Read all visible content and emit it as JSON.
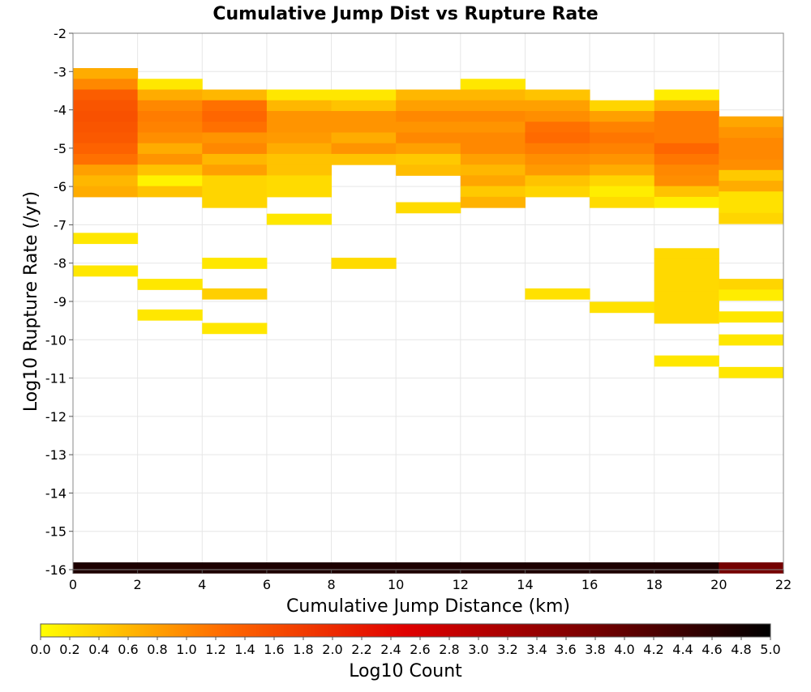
{
  "chart_data": {
    "type": "heatmap",
    "title": "Cumulative Jump Dist vs Rupture Rate",
    "xlabel": "Cumulative Jump Distance (km)",
    "ylabel": "Log10 Rupture Rate (/yr)",
    "xlim": [
      0,
      22
    ],
    "ylim": [
      -16,
      -2
    ],
    "x_ticks": [
      "0",
      "2",
      "4",
      "6",
      "8",
      "10",
      "12",
      "14",
      "16",
      "18",
      "20",
      "22"
    ],
    "y_ticks": [
      "-2",
      "-3",
      "-4",
      "-5",
      "-6",
      "-7",
      "-8",
      "-9",
      "-10",
      "-11",
      "-12",
      "-13",
      "-14",
      "-15",
      "-16"
    ],
    "grid": true,
    "x_bin_width": 2,
    "y_bin_height": 0.28,
    "colorbar": {
      "label": "Log10 Count",
      "range": [
        0,
        5
      ],
      "ticks": [
        "0.0",
        "0.2",
        "0.4",
        "0.6",
        "0.8",
        "1.0",
        "1.2",
        "1.4",
        "1.6",
        "1.8",
        "2.0",
        "2.2",
        "2.4",
        "2.6",
        "2.8",
        "3.0",
        "3.2",
        "3.4",
        "3.6",
        "3.8",
        "4.0",
        "4.2",
        "4.4",
        "4.6",
        "4.8",
        "5.0"
      ],
      "colors": [
        "#ffff00",
        "#ff6a00",
        "#e00000",
        "#7a0000",
        "#000000"
      ]
    },
    "columns": [
      {
        "x": 1,
        "cells": [
          {
            "y": -3.05,
            "v": 0.7
          },
          {
            "y": -3.33,
            "v": 1.0
          },
          {
            "y": -3.61,
            "v": 1.4
          },
          {
            "y": -3.89,
            "v": 1.5
          },
          {
            "y": -4.17,
            "v": 1.55
          },
          {
            "y": -4.45,
            "v": 1.5
          },
          {
            "y": -4.73,
            "v": 1.45
          },
          {
            "y": -5.01,
            "v": 1.35
          },
          {
            "y": -5.29,
            "v": 1.2
          },
          {
            "y": -5.57,
            "v": 0.8
          },
          {
            "y": -5.85,
            "v": 0.6
          },
          {
            "y": -6.13,
            "v": 0.7
          },
          {
            "y": -7.35,
            "v": 0.2
          },
          {
            "y": -8.2,
            "v": 0.2
          },
          {
            "y": -15.95,
            "v": 4.7
          }
        ]
      },
      {
        "x": 3,
        "cells": [
          {
            "y": -3.33,
            "v": 0.2
          },
          {
            "y": -3.61,
            "v": 0.7
          },
          {
            "y": -3.89,
            "v": 1.0
          },
          {
            "y": -4.17,
            "v": 1.1
          },
          {
            "y": -4.45,
            "v": 1.05
          },
          {
            "y": -4.73,
            "v": 0.95
          },
          {
            "y": -5.01,
            "v": 0.7
          },
          {
            "y": -5.29,
            "v": 0.9
          },
          {
            "y": -5.57,
            "v": 0.5
          },
          {
            "y": -5.85,
            "v": 0.1
          },
          {
            "y": -6.13,
            "v": 0.5
          },
          {
            "y": -8.55,
            "v": 0.2
          },
          {
            "y": -9.35,
            "v": 0.2
          },
          {
            "y": -15.95,
            "v": 4.7
          }
        ]
      },
      {
        "x": 5,
        "cells": [
          {
            "y": -3.61,
            "v": 0.6
          },
          {
            "y": -3.89,
            "v": 1.2
          },
          {
            "y": -4.17,
            "v": 1.3
          },
          {
            "y": -4.45,
            "v": 1.2
          },
          {
            "y": -4.73,
            "v": 0.9
          },
          {
            "y": -5.01,
            "v": 1.0
          },
          {
            "y": -5.29,
            "v": 0.6
          },
          {
            "y": -5.57,
            "v": 0.8
          },
          {
            "y": -5.85,
            "v": 0.35
          },
          {
            "y": -6.13,
            "v": 0.35
          },
          {
            "y": -6.41,
            "v": 0.35
          },
          {
            "y": -8.0,
            "v": 0.2
          },
          {
            "y": -8.8,
            "v": 0.4
          },
          {
            "y": -9.7,
            "v": 0.2
          },
          {
            "y": -15.95,
            "v": 4.7
          }
        ]
      },
      {
        "x": 7,
        "cells": [
          {
            "y": -3.61,
            "v": 0.2
          },
          {
            "y": -3.89,
            "v": 0.6
          },
          {
            "y": -4.17,
            "v": 0.9
          },
          {
            "y": -4.45,
            "v": 0.9
          },
          {
            "y": -4.73,
            "v": 0.85
          },
          {
            "y": -5.01,
            "v": 0.7
          },
          {
            "y": -5.29,
            "v": 0.5
          },
          {
            "y": -5.57,
            "v": 0.5
          },
          {
            "y": -5.85,
            "v": 0.3
          },
          {
            "y": -6.13,
            "v": 0.3
          },
          {
            "y": -6.85,
            "v": 0.2
          },
          {
            "y": -15.95,
            "v": 4.7
          }
        ]
      },
      {
        "x": 9,
        "cells": [
          {
            "y": -3.61,
            "v": 0.2
          },
          {
            "y": -3.89,
            "v": 0.5
          },
          {
            "y": -4.17,
            "v": 0.9
          },
          {
            "y": -4.45,
            "v": 0.9
          },
          {
            "y": -4.73,
            "v": 0.7
          },
          {
            "y": -5.01,
            "v": 0.9
          },
          {
            "y": -5.29,
            "v": 0.5
          },
          {
            "y": -8.0,
            "v": 0.3
          },
          {
            "y": -15.95,
            "v": 4.7
          }
        ]
      },
      {
        "x": 11,
        "cells": [
          {
            "y": -3.61,
            "v": 0.6
          },
          {
            "y": -3.89,
            "v": 0.8
          },
          {
            "y": -4.17,
            "v": 1.0
          },
          {
            "y": -4.45,
            "v": 0.9
          },
          {
            "y": -4.73,
            "v": 1.0
          },
          {
            "y": -5.01,
            "v": 0.8
          },
          {
            "y": -5.29,
            "v": 0.45
          },
          {
            "y": -5.57,
            "v": 0.55
          },
          {
            "y": -6.55,
            "v": 0.3
          },
          {
            "y": -15.95,
            "v": 4.7
          }
        ]
      },
      {
        "x": 13,
        "cells": [
          {
            "y": -3.33,
            "v": 0.2
          },
          {
            "y": -3.61,
            "v": 0.6
          },
          {
            "y": -3.89,
            "v": 0.8
          },
          {
            "y": -4.17,
            "v": 1.0
          },
          {
            "y": -4.45,
            "v": 0.9
          },
          {
            "y": -4.73,
            "v": 1.0
          },
          {
            "y": -5.01,
            "v": 1.0
          },
          {
            "y": -5.29,
            "v": 0.8
          },
          {
            "y": -5.57,
            "v": 0.6
          },
          {
            "y": -5.85,
            "v": 0.75
          },
          {
            "y": -6.13,
            "v": 0.45
          },
          {
            "y": -6.41,
            "v": 0.65
          },
          {
            "y": -15.95,
            "v": 4.7
          }
        ]
      },
      {
        "x": 15,
        "cells": [
          {
            "y": -3.61,
            "v": 0.5
          },
          {
            "y": -3.89,
            "v": 0.8
          },
          {
            "y": -4.17,
            "v": 0.95
          },
          {
            "y": -4.45,
            "v": 1.2
          },
          {
            "y": -4.73,
            "v": 1.25
          },
          {
            "y": -5.01,
            "v": 1.1
          },
          {
            "y": -5.29,
            "v": 0.95
          },
          {
            "y": -5.57,
            "v": 0.85
          },
          {
            "y": -5.85,
            "v": 0.5
          },
          {
            "y": -6.13,
            "v": 0.35
          },
          {
            "y": -8.8,
            "v": 0.25
          },
          {
            "y": -15.95,
            "v": 4.7
          }
        ]
      },
      {
        "x": 17,
        "cells": [
          {
            "y": -3.89,
            "v": 0.35
          },
          {
            "y": -4.17,
            "v": 0.8
          },
          {
            "y": -4.45,
            "v": 1.05
          },
          {
            "y": -4.73,
            "v": 1.15
          },
          {
            "y": -5.01,
            "v": 1.05
          },
          {
            "y": -5.29,
            "v": 0.9
          },
          {
            "y": -5.57,
            "v": 0.7
          },
          {
            "y": -5.85,
            "v": 0.35
          },
          {
            "y": -6.13,
            "v": 0.15
          },
          {
            "y": -6.41,
            "v": 0.3
          },
          {
            "y": -9.15,
            "v": 0.25
          },
          {
            "y": -15.95,
            "v": 4.7
          }
        ]
      },
      {
        "x": 19,
        "cells": [
          {
            "y": -3.61,
            "v": 0.15
          },
          {
            "y": -3.89,
            "v": 0.7
          },
          {
            "y": -4.17,
            "v": 1.1
          },
          {
            "y": -4.45,
            "v": 1.1
          },
          {
            "y": -4.73,
            "v": 1.1
          },
          {
            "y": -5.01,
            "v": 1.3
          },
          {
            "y": -5.29,
            "v": 1.15
          },
          {
            "y": -5.57,
            "v": 1.0
          },
          {
            "y": -5.85,
            "v": 0.95
          },
          {
            "y": -6.13,
            "v": 0.5
          },
          {
            "y": -6.41,
            "v": 0.15
          },
          {
            "y": -7.75,
            "v": 0.32
          },
          {
            "y": -8.03,
            "v": 0.32
          },
          {
            "y": -8.31,
            "v": 0.32
          },
          {
            "y": -8.59,
            "v": 0.32
          },
          {
            "y": -8.87,
            "v": 0.32
          },
          {
            "y": -9.15,
            "v": 0.32
          },
          {
            "y": -9.43,
            "v": 0.32
          },
          {
            "y": -10.55,
            "v": 0.2
          },
          {
            "y": -15.95,
            "v": 4.7
          }
        ]
      },
      {
        "x": 21,
        "cells": [
          {
            "y": -4.31,
            "v": 0.75
          },
          {
            "y": -4.59,
            "v": 0.9
          },
          {
            "y": -4.87,
            "v": 1.0
          },
          {
            "y": -5.15,
            "v": 1.0
          },
          {
            "y": -5.43,
            "v": 0.95
          },
          {
            "y": -5.71,
            "v": 0.45
          },
          {
            "y": -5.99,
            "v": 0.7
          },
          {
            "y": -6.27,
            "v": 0.25
          },
          {
            "y": -6.55,
            "v": 0.25
          },
          {
            "y": -6.83,
            "v": 0.35
          },
          {
            "y": -8.55,
            "v": 0.35
          },
          {
            "y": -8.83,
            "v": 0.15
          },
          {
            "y": -9.4,
            "v": 0.2
          },
          {
            "y": -10.0,
            "v": 0.2
          },
          {
            "y": -10.85,
            "v": 0.2
          },
          {
            "y": -15.95,
            "v": 3.8
          }
        ]
      }
    ]
  }
}
